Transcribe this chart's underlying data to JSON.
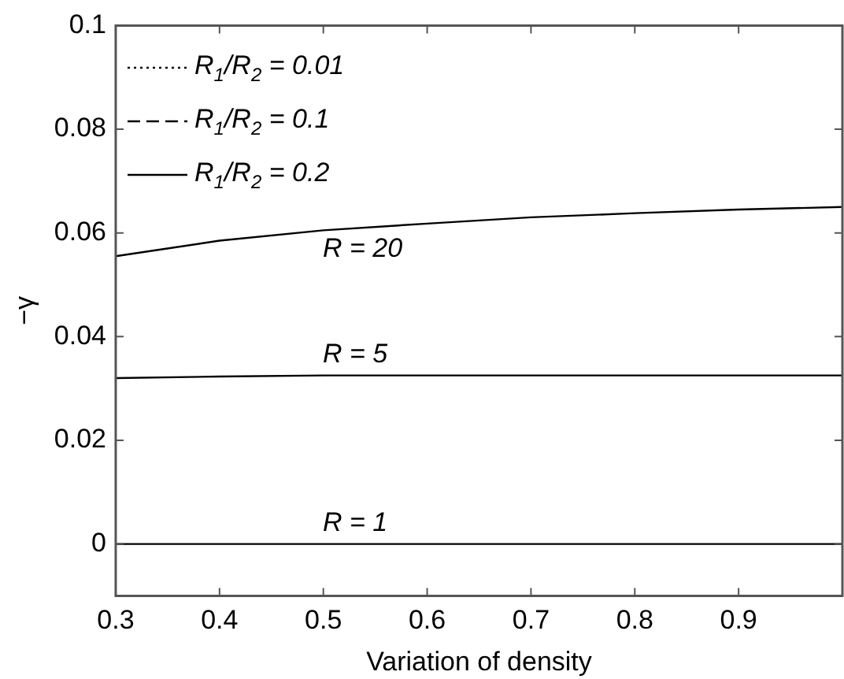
{
  "chart_data": {
    "type": "line",
    "xlabel": "Variation of density",
    "ylabel": "−γ",
    "xlim": [
      0.3,
      1.0
    ],
    "xticks": [
      0.3,
      0.4,
      0.5,
      0.6,
      0.7,
      0.8,
      0.9
    ],
    "ylim": [
      -0.01,
      0.1
    ],
    "yticks": [
      0,
      0.02,
      0.04,
      0.06,
      0.08,
      0.1
    ],
    "grid": false,
    "legend": "top left",
    "marker": "none",
    "series": [
      {
        "name": "R$_{1}$/R$_{2}$ = 0.01",
        "color": "#000000",
        "line_style": "dotted"
      },
      {
        "name": "R$_{1}$/R$_{2}$ = 0.1",
        "color": "#000000",
        "line_style": "dashed"
      },
      {
        "name": "R$_{1}$/R$_{2}$ = 0.2",
        "color": "#000000",
        "line_style": "solid",
        "x": [
          0.3,
          0.4,
          0.5,
          0.6,
          0.7,
          0.8,
          0.9,
          1.0,
          0.3,
          0.4,
          0.5,
          0.6,
          0.7,
          0.8,
          0.9,
          1.0,
          0.3,
          0.4,
          0.5,
          0.6,
          0.7,
          0.8,
          0.9,
          1.0
        ],
        "values": [
          0.0555,
          0.0585,
          0.0605,
          0.0618,
          0.063,
          0.0638,
          0.0645,
          0.065,
          0.032,
          0.0323,
          0.0325,
          0.0325,
          0.0325,
          0.0325,
          0.0325,
          0.0325,
          0,
          0,
          0,
          0,
          0,
          0,
          0,
          0
        ]
      }
    ],
    "annotations": [
      "R = 20",
      "R = 5",
      "R = 1"
    ]
  }
}
